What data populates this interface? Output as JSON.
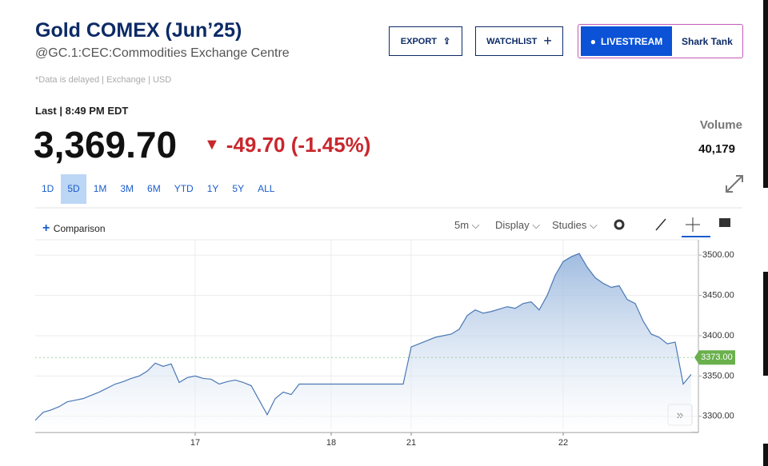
{
  "header": {
    "title": "Gold COMEX (Jun’25)",
    "symbol": "@GC.1:CEC:Commodities Exchange Centre",
    "note": "*Data is delayed | Exchange | USD"
  },
  "buttons": [
    "EXPORT",
    "WATCHLIST"
  ],
  "livestream": {
    "label": "LIVESTREAM",
    "show": "Shark Tank"
  },
  "quote": {
    "last": "Last | 8:49 PM EDT",
    "price": "3,369.70",
    "change": "-49.70 (-1.45%)",
    "volume_label": "Volume",
    "volume": "40,179"
  },
  "ranges": [
    "1D",
    "5D",
    "1M",
    "3M",
    "6M",
    "YTD",
    "1Y",
    "5Y",
    "ALL"
  ],
  "toolbar": {
    "comparison": "Comparison",
    "interval": "5m",
    "display": "Display",
    "studies": "Studies"
  },
  "chart_data": {
    "type": "line",
    "color": "#4a78b5",
    "area": true,
    "grid": true,
    "categories": [
      null,
      null,
      null,
      null,
      null,
      null,
      null,
      null,
      null,
      null,
      null,
      null,
      null,
      null,
      null,
      null,
      null,
      null,
      null,
      null,
      "17",
      null,
      null,
      null,
      null,
      null,
      null,
      null,
      null,
      null,
      null,
      null,
      null,
      null,
      null,
      null,
      null,
      "18",
      null,
      null,
      null,
      null,
      null,
      null,
      null,
      null,
      null,
      "21",
      null,
      null,
      null,
      null,
      null,
      null,
      null,
      null,
      null,
      null,
      null,
      null,
      null,
      null,
      null,
      null,
      null,
      null,
      "22",
      null,
      null,
      null,
      null,
      null,
      null,
      null,
      null,
      null,
      null,
      null,
      null,
      null,
      null,
      null,
      null
    ],
    "values": [
      3295,
      3305,
      3308,
      3312,
      3318,
      3320,
      3322,
      3326,
      3330,
      3335,
      3340,
      3343,
      3347,
      3350,
      3356,
      3366,
      3362,
      3365,
      3342,
      3348,
      3350,
      3347,
      3346,
      3340,
      3343,
      3345,
      3342,
      3338,
      3320,
      3302,
      3322,
      3330,
      3327,
      3340,
      3340,
      3340,
      3340,
      3340,
      3340,
      3340,
      3340,
      3340,
      3340,
      3340,
      3340,
      3340,
      3340,
      3386,
      3390,
      3394,
      3398,
      3400,
      3402,
      3408,
      3425,
      3432,
      3428,
      3430,
      3433,
      3436,
      3434,
      3440,
      3442,
      3432,
      3450,
      3475,
      3492,
      3498,
      3502,
      3485,
      3472,
      3465,
      3460,
      3462,
      3445,
      3440,
      3418,
      3402,
      3398,
      3390,
      3392,
      3340,
      3352
    ],
    "ylim": [
      3280,
      3519
    ],
    "yticks": [
      {
        "value": 3300,
        "label": "3300.00"
      },
      {
        "value": 3350,
        "label": "3350.00"
      },
      {
        "value": 3400,
        "label": "3400.00"
      },
      {
        "value": 3450,
        "label": "3450.00"
      },
      {
        "value": 3500,
        "label": "3500.00"
      }
    ],
    "price_tag": {
      "value": 3373,
      "label": "3373.00"
    }
  }
}
